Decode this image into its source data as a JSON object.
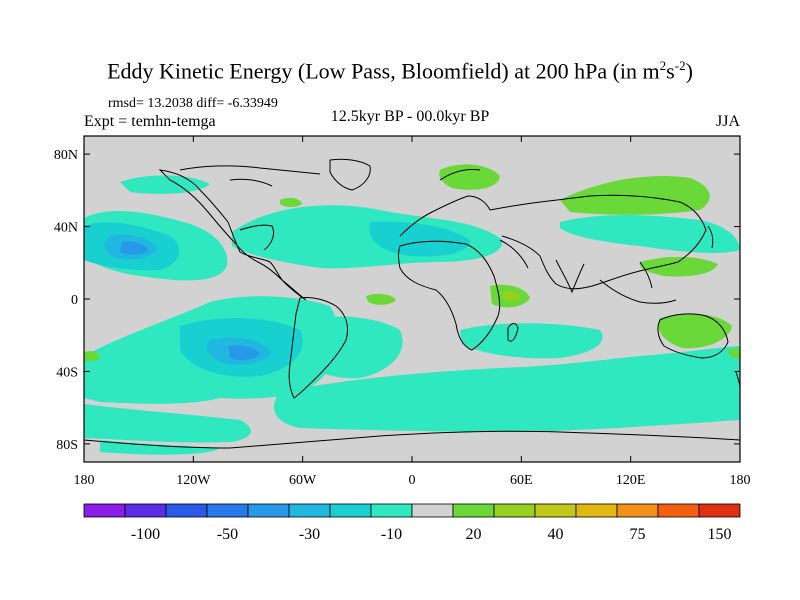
{
  "title": {
    "main": "Eddy Kinetic Energy (Low Pass, Bloomfield) at 200 hPa (in m",
    "sup1": "2",
    "mid": "s",
    "sup2": "-2",
    "end": ")"
  },
  "stats": "rmsd= 13.2038 diff= -6.33949",
  "experiment": "Expt = temhn-temga",
  "center_title": "12.5kyr BP - 00.0kyr BP",
  "season": "JJA",
  "lat_ticks": [
    {
      "label": "80N",
      "value": 80
    },
    {
      "label": "40N",
      "value": 40
    },
    {
      "label": "0",
      "value": 0
    },
    {
      "label": "40S",
      "value": -40
    },
    {
      "label": "80S",
      "value": -80
    }
  ],
  "lon_ticks": [
    {
      "label": "180",
      "value": -180
    },
    {
      "label": "120W",
      "value": -120
    },
    {
      "label": "60W",
      "value": -60
    },
    {
      "label": "0",
      "value": 0
    },
    {
      "label": "60E",
      "value": 60
    },
    {
      "label": "120E",
      "value": 120
    },
    {
      "label": "180",
      "value": 180
    }
  ],
  "colorbar": {
    "colors": [
      "#8a1ee6",
      "#5a2ee6",
      "#2c5ae8",
      "#2878e8",
      "#2898e8",
      "#20b8e0",
      "#18d0d0",
      "#30e8c0",
      "#d2d2d2",
      "#6ad838",
      "#98d020",
      "#c0c818",
      "#e0b810",
      "#f09018",
      "#f06010",
      "#e03010"
    ],
    "labels": [
      {
        "text": "-100",
        "boundary": 2
      },
      {
        "text": "-50",
        "boundary": 4
      },
      {
        "text": "-30",
        "boundary": 6
      },
      {
        "text": "-10",
        "boundary": 8
      },
      {
        "text": "20",
        "boundary": 10
      },
      {
        "text": "40",
        "boundary": 12
      },
      {
        "text": "75",
        "boundary": 14
      },
      {
        "text": "150",
        "boundary": 16
      }
    ]
  },
  "map": {
    "background_color": "#d2d2d2",
    "lon_range": [
      -180,
      180
    ],
    "lat_range": [
      -90,
      90
    ]
  }
}
